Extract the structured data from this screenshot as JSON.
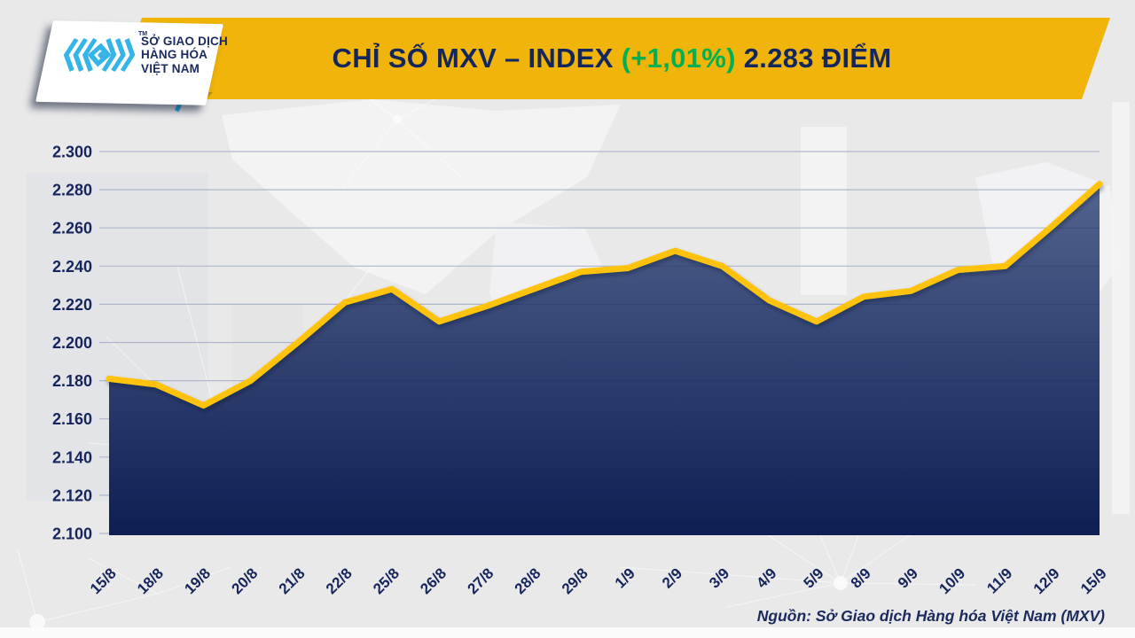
{
  "header": {
    "logo": {
      "text_lines": [
        "SỞ GIAO DỊCH",
        "HÀNG HÓA",
        "VIỆT NAM"
      ],
      "trademark": "TM"
    },
    "title_main": "CHỈ SỐ MXV – INDEX",
    "title_change": "(+1,01%)",
    "title_value": "2.283 ĐIỂM"
  },
  "footer": {
    "source": "Nguồn: Sở Giao dịch Hàng hóa Việt Nam (MXV)"
  },
  "colors": {
    "banner_yellow": "#F0B40A",
    "line_yellow": "#FFC20E",
    "navy_text": "#16265C",
    "green_change": "#00B053",
    "logo_blue": "#35B4E8",
    "area_top": "#53648F",
    "area_bottom": "#0E1E52",
    "gridline": "#AEB7CB"
  },
  "chart_data": {
    "type": "area",
    "title": "CHỈ SỐ MXV – INDEX (+1,01%) 2.283 ĐIỂM",
    "categories": [
      "15/8",
      "18/8",
      "19/8",
      "20/8",
      "21/8",
      "22/8",
      "25/8",
      "26/8",
      "27/8",
      "28/8",
      "29/8",
      "1/9",
      "2/9",
      "3/9",
      "4/9",
      "5/9",
      "8/9",
      "9/9",
      "10/9",
      "11/9",
      "12/9",
      "15/9"
    ],
    "values": [
      2.181,
      2.178,
      2.167,
      2.18,
      2.2,
      2.221,
      2.228,
      2.211,
      2.219,
      2.228,
      2.237,
      2.239,
      2.248,
      2.24,
      2.222,
      2.211,
      2.224,
      2.227,
      2.238,
      2.24,
      2.261,
      2.283
    ],
    "xlabel": "",
    "ylabel": "",
    "ylim": [
      2.1,
      2.3
    ],
    "ytick_step": 0.02,
    "ytick_labels": [
      "2.300",
      "2.280",
      "2.260",
      "2.240",
      "2.220",
      "2.200",
      "2.180",
      "2.160",
      "2.140",
      "2.120",
      "2.100"
    ],
    "grid": "horizontal",
    "legend": "none"
  }
}
